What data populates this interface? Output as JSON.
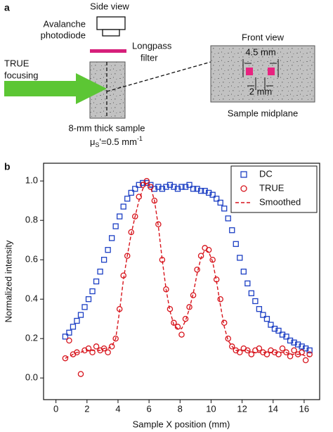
{
  "figure": {
    "panel_a": {
      "label": "a",
      "side_view": "Side view",
      "detector_line1": "Avalanche",
      "detector_line2": "photodiode",
      "filter_line1": "Longpass",
      "filter_line2": "filter",
      "focus_line1": "TRUE",
      "focus_line2": "focusing",
      "sample": "8-mm thick sample",
      "mu": "μ",
      "mu_sub": "S",
      "mu_mid": "'=0.5 mm",
      "mu_sup": "-1",
      "front_view": "Front view",
      "dist_large": "4.5 mm",
      "dist_small": "2 mm",
      "midplane": "Sample midplane"
    },
    "panel_b": {
      "label": "b"
    }
  },
  "chart_data": {
    "type": "line",
    "xlabel": "Sample X position (mm)",
    "ylabel": "Normalized intensity",
    "xlim": [
      -0.8,
      17
    ],
    "ylim": [
      -0.11,
      1.09
    ],
    "xticks": [
      0,
      2,
      4,
      6,
      8,
      10,
      12,
      14,
      16
    ],
    "yticks": [
      {
        "value": 0,
        "label": "0.0"
      },
      0.2,
      0.4,
      0.6,
      0.8,
      {
        "value": 1,
        "label": "1.0"
      }
    ],
    "legend": "upper right",
    "x": [
      0.6,
      0.85,
      1.1,
      1.35,
      1.6,
      1.85,
      2.1,
      2.35,
      2.6,
      2.85,
      3.1,
      3.35,
      3.6,
      3.85,
      4.1,
      4.35,
      4.6,
      4.85,
      5.1,
      5.35,
      5.6,
      5.85,
      6.1,
      6.35,
      6.6,
      6.85,
      7.1,
      7.35,
      7.6,
      7.85,
      8.1,
      8.35,
      8.6,
      8.85,
      9.1,
      9.35,
      9.6,
      9.85,
      10.1,
      10.35,
      10.6,
      10.85,
      11.1,
      11.35,
      11.6,
      11.85,
      12.1,
      12.35,
      12.6,
      12.85,
      13.1,
      13.35,
      13.6,
      13.85,
      14.1,
      14.35,
      14.6,
      14.85,
      15.1,
      15.35,
      15.6,
      15.85,
      16.1,
      16.35
    ],
    "series": [
      {
        "name": "DC",
        "color": "#1c3fc4",
        "marker": "square",
        "line": "none",
        "values": [
          0.21,
          0.23,
          0.26,
          0.29,
          0.32,
          0.36,
          0.4,
          0.44,
          0.49,
          0.54,
          0.6,
          0.65,
          0.71,
          0.77,
          0.82,
          0.87,
          0.91,
          0.94,
          0.96,
          0.98,
          0.99,
          0.99,
          0.98,
          0.96,
          0.97,
          0.96,
          0.97,
          0.98,
          0.97,
          0.96,
          0.97,
          0.97,
          0.98,
          0.96,
          0.96,
          0.95,
          0.95,
          0.94,
          0.93,
          0.91,
          0.89,
          0.86,
          0.81,
          0.75,
          0.68,
          0.61,
          0.54,
          0.48,
          0.43,
          0.39,
          0.35,
          0.32,
          0.3,
          0.27,
          0.25,
          0.24,
          0.22,
          0.21,
          0.19,
          0.18,
          0.17,
          0.16,
          0.15,
          0.14
        ]
      },
      {
        "name": "TRUE",
        "color": "#d7141c",
        "marker": "circle",
        "line": "none",
        "values": [
          0.1,
          0.19,
          0.12,
          0.13,
          0.02,
          0.14,
          0.15,
          0.13,
          0.16,
          0.14,
          0.15,
          0.13,
          0.16,
          0.2,
          0.35,
          0.52,
          0.62,
          0.74,
          0.82,
          0.92,
          0.98,
          1.0,
          0.97,
          0.9,
          0.78,
          0.6,
          0.45,
          0.35,
          0.28,
          0.26,
          0.22,
          0.3,
          0.36,
          0.42,
          0.55,
          0.62,
          0.66,
          0.65,
          0.6,
          0.5,
          0.4,
          0.28,
          0.2,
          0.16,
          0.14,
          0.13,
          0.15,
          0.14,
          0.12,
          0.14,
          0.15,
          0.13,
          0.12,
          0.14,
          0.13,
          0.12,
          0.15,
          0.13,
          0.11,
          0.14,
          0.12,
          0.13,
          0.09,
          0.12
        ]
      },
      {
        "name": "Smoothed",
        "color": "#d7141c",
        "marker": "none",
        "line": "dashed",
        "values": [
          0.1,
          0.11,
          0.12,
          0.13,
          0.13,
          0.14,
          0.14,
          0.14,
          0.14,
          0.14,
          0.15,
          0.15,
          0.16,
          0.2,
          0.34,
          0.5,
          0.62,
          0.73,
          0.82,
          0.9,
          0.96,
          0.99,
          0.97,
          0.9,
          0.77,
          0.6,
          0.45,
          0.34,
          0.27,
          0.25,
          0.25,
          0.29,
          0.35,
          0.43,
          0.53,
          0.61,
          0.65,
          0.64,
          0.59,
          0.49,
          0.37,
          0.26,
          0.19,
          0.16,
          0.14,
          0.14,
          0.14,
          0.14,
          0.13,
          0.13,
          0.13,
          0.13,
          0.13,
          0.13,
          0.13,
          0.13,
          0.13,
          0.13,
          0.12,
          0.12,
          0.12,
          0.12,
          0.11,
          0.11
        ]
      }
    ]
  }
}
